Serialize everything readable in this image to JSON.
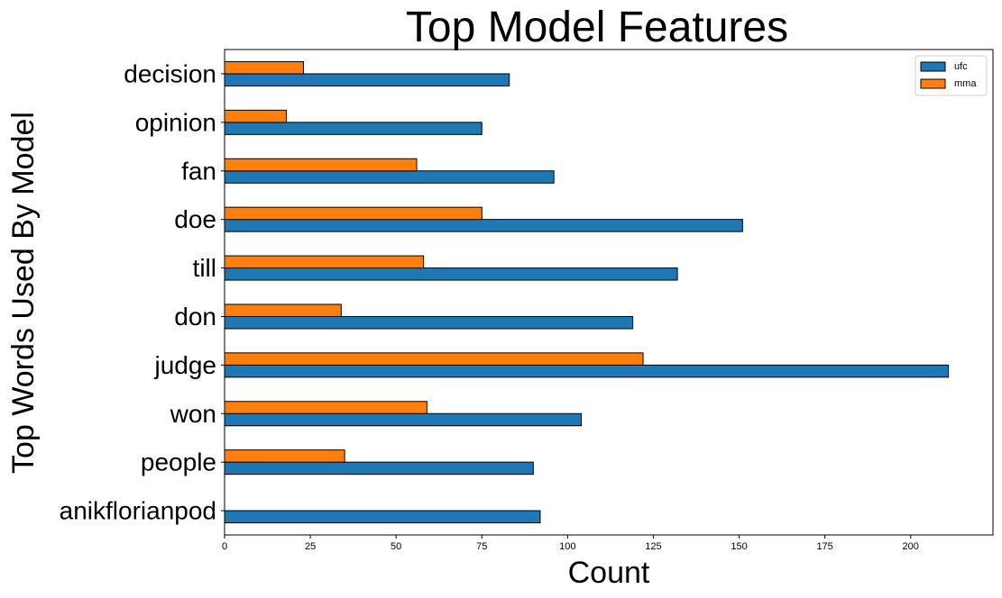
{
  "chart_data": {
    "type": "bar",
    "orientation": "horizontal",
    "title": "Top Model Features",
    "xlabel": "Count",
    "ylabel": "Top Words Used By Model",
    "categories": [
      "anikflorianpod",
      "people",
      "won",
      "judge",
      "don",
      "till",
      "doe",
      "fan",
      "opinion",
      "decision"
    ],
    "series": [
      {
        "name": "ufc",
        "color": "#1f77b4",
        "values": [
          92,
          90,
          104,
          211,
          119,
          132,
          151,
          96,
          75,
          83
        ]
      },
      {
        "name": "mma",
        "color": "#ff7f0e",
        "values": [
          0,
          35,
          59,
          122,
          34,
          58,
          75,
          56,
          18,
          23
        ]
      }
    ],
    "xlim": [
      0,
      224
    ],
    "xticks": [
      0,
      25,
      50,
      75,
      100,
      125,
      150,
      175,
      200
    ],
    "grid": false,
    "legend": {
      "position": "top-right",
      "entries": [
        "ufc",
        "mma"
      ]
    }
  }
}
